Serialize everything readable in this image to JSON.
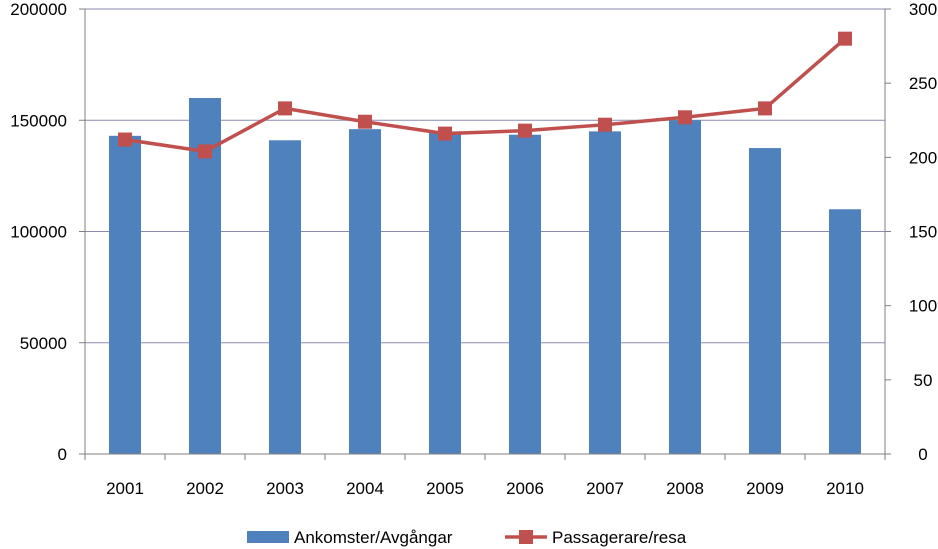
{
  "chart_data": {
    "type": "bar",
    "categories": [
      "2001",
      "2002",
      "2003",
      "2004",
      "2005",
      "2006",
      "2007",
      "2008",
      "2009",
      "2010"
    ],
    "series": [
      {
        "name": "Ankomster/Avgångar",
        "type": "bar",
        "axis": "left",
        "color": "#4F81BD",
        "values": [
          143000,
          160000,
          141000,
          146000,
          145000,
          143500,
          145000,
          150000,
          137500,
          110000
        ]
      },
      {
        "name": "Passagerare/resa",
        "type": "line",
        "axis": "right",
        "color": "#C0504D",
        "marker": "square",
        "values": [
          212,
          204,
          233,
          224,
          216,
          218,
          222,
          227,
          233,
          280
        ]
      }
    ],
    "y_left": {
      "min": 0,
      "max": 200000,
      "ticks": [
        "0",
        "50000",
        "100000",
        "150000",
        "200000"
      ]
    },
    "y_right": {
      "min": 0,
      "max": 300,
      "ticks": [
        "0",
        "50",
        "100",
        "150",
        "200",
        "250",
        "300"
      ]
    },
    "grid": "horizontal",
    "legend_position": "bottom",
    "title": "",
    "xlabel": "",
    "ylabel": ""
  }
}
